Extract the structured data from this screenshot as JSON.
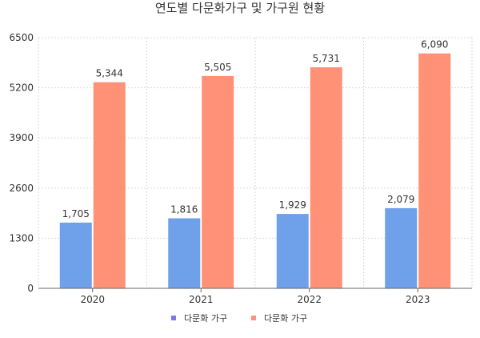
{
  "chart_data": {
    "type": "bar",
    "title": "연도별 다문화가구 및 가구원 현황",
    "categories": [
      "2020",
      "2021",
      "2022",
      "2023"
    ],
    "series": [
      {
        "name": "다문화 가구",
        "values": [
          1705,
          1816,
          1929,
          2079
        ],
        "labels": [
          "1,705",
          "1,816",
          "1,929",
          "2,079"
        ],
        "color": "#6fa0ea"
      },
      {
        "name": "다문화 가구",
        "values": [
          5344,
          5505,
          5731,
          6090
        ],
        "labels": [
          "5,344",
          "5,505",
          "5,731",
          "6,090"
        ],
        "color": "#ff9177"
      }
    ],
    "legend_colors": [
      "#7b79e8",
      "#ff9177"
    ],
    "yticks": [
      "0",
      "1300",
      "2600",
      "3900",
      "5200",
      "6500"
    ],
    "ylim": [
      0,
      6500
    ],
    "grid": true,
    "legend_position": "bottom"
  }
}
